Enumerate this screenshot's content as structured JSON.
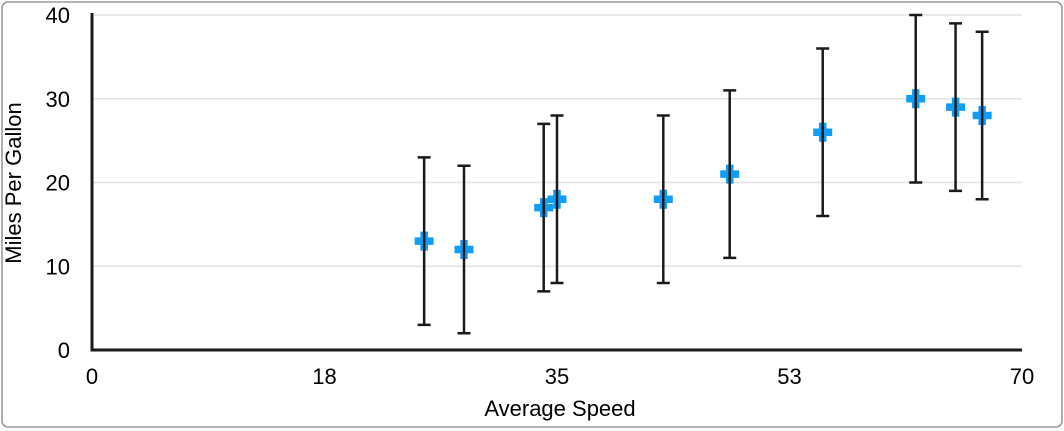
{
  "chart_data": {
    "type": "scatter",
    "title": "",
    "xlabel": "Average Speed",
    "ylabel": "Miles Per Gallon",
    "x_range": [
      0,
      70
    ],
    "y_range": [
      0,
      40
    ],
    "x_tick_values": [
      0,
      17.5,
      35,
      52.5,
      70
    ],
    "x_tick_labels": [
      "0",
      "18",
      "35",
      "53",
      "70"
    ],
    "y_tick_values": [
      0,
      10,
      20,
      30,
      40
    ],
    "y_tick_labels": [
      "0",
      "10",
      "20",
      "30",
      "40"
    ],
    "grid": "horizontal-only",
    "legend": "none",
    "marker_style": "plus",
    "error_bars": "y-symmetric",
    "series": [
      {
        "name": "Miles Per Gallon",
        "points": [
          {
            "x": 25,
            "y": 13,
            "error_plus": 10,
            "error_minus": 10
          },
          {
            "x": 28,
            "y": 12,
            "error_plus": 10,
            "error_minus": 10
          },
          {
            "x": 34,
            "y": 17,
            "error_plus": 10,
            "error_minus": 10
          },
          {
            "x": 35,
            "y": 18,
            "error_plus": 10,
            "error_minus": 10
          },
          {
            "x": 43,
            "y": 18,
            "error_plus": 10,
            "error_minus": 10
          },
          {
            "x": 48,
            "y": 21,
            "error_plus": 10,
            "error_minus": 10
          },
          {
            "x": 55,
            "y": 26,
            "error_plus": 10,
            "error_minus": 10
          },
          {
            "x": 62,
            "y": 30,
            "error_plus": 10,
            "error_minus": 10
          },
          {
            "x": 65,
            "y": 29,
            "error_plus": 10,
            "error_minus": 10
          },
          {
            "x": 67,
            "y": 28,
            "error_plus": 10,
            "error_minus": 10
          }
        ]
      }
    ],
    "colors": {
      "marker": "#119CF5",
      "error_bar": "#1A1A1A",
      "axis_line": "#1A1A1A",
      "gridline": "#E2E2E2",
      "text": "#000000",
      "frame_border": "#9B9B9B",
      "background": "#FFFFFF"
    }
  }
}
